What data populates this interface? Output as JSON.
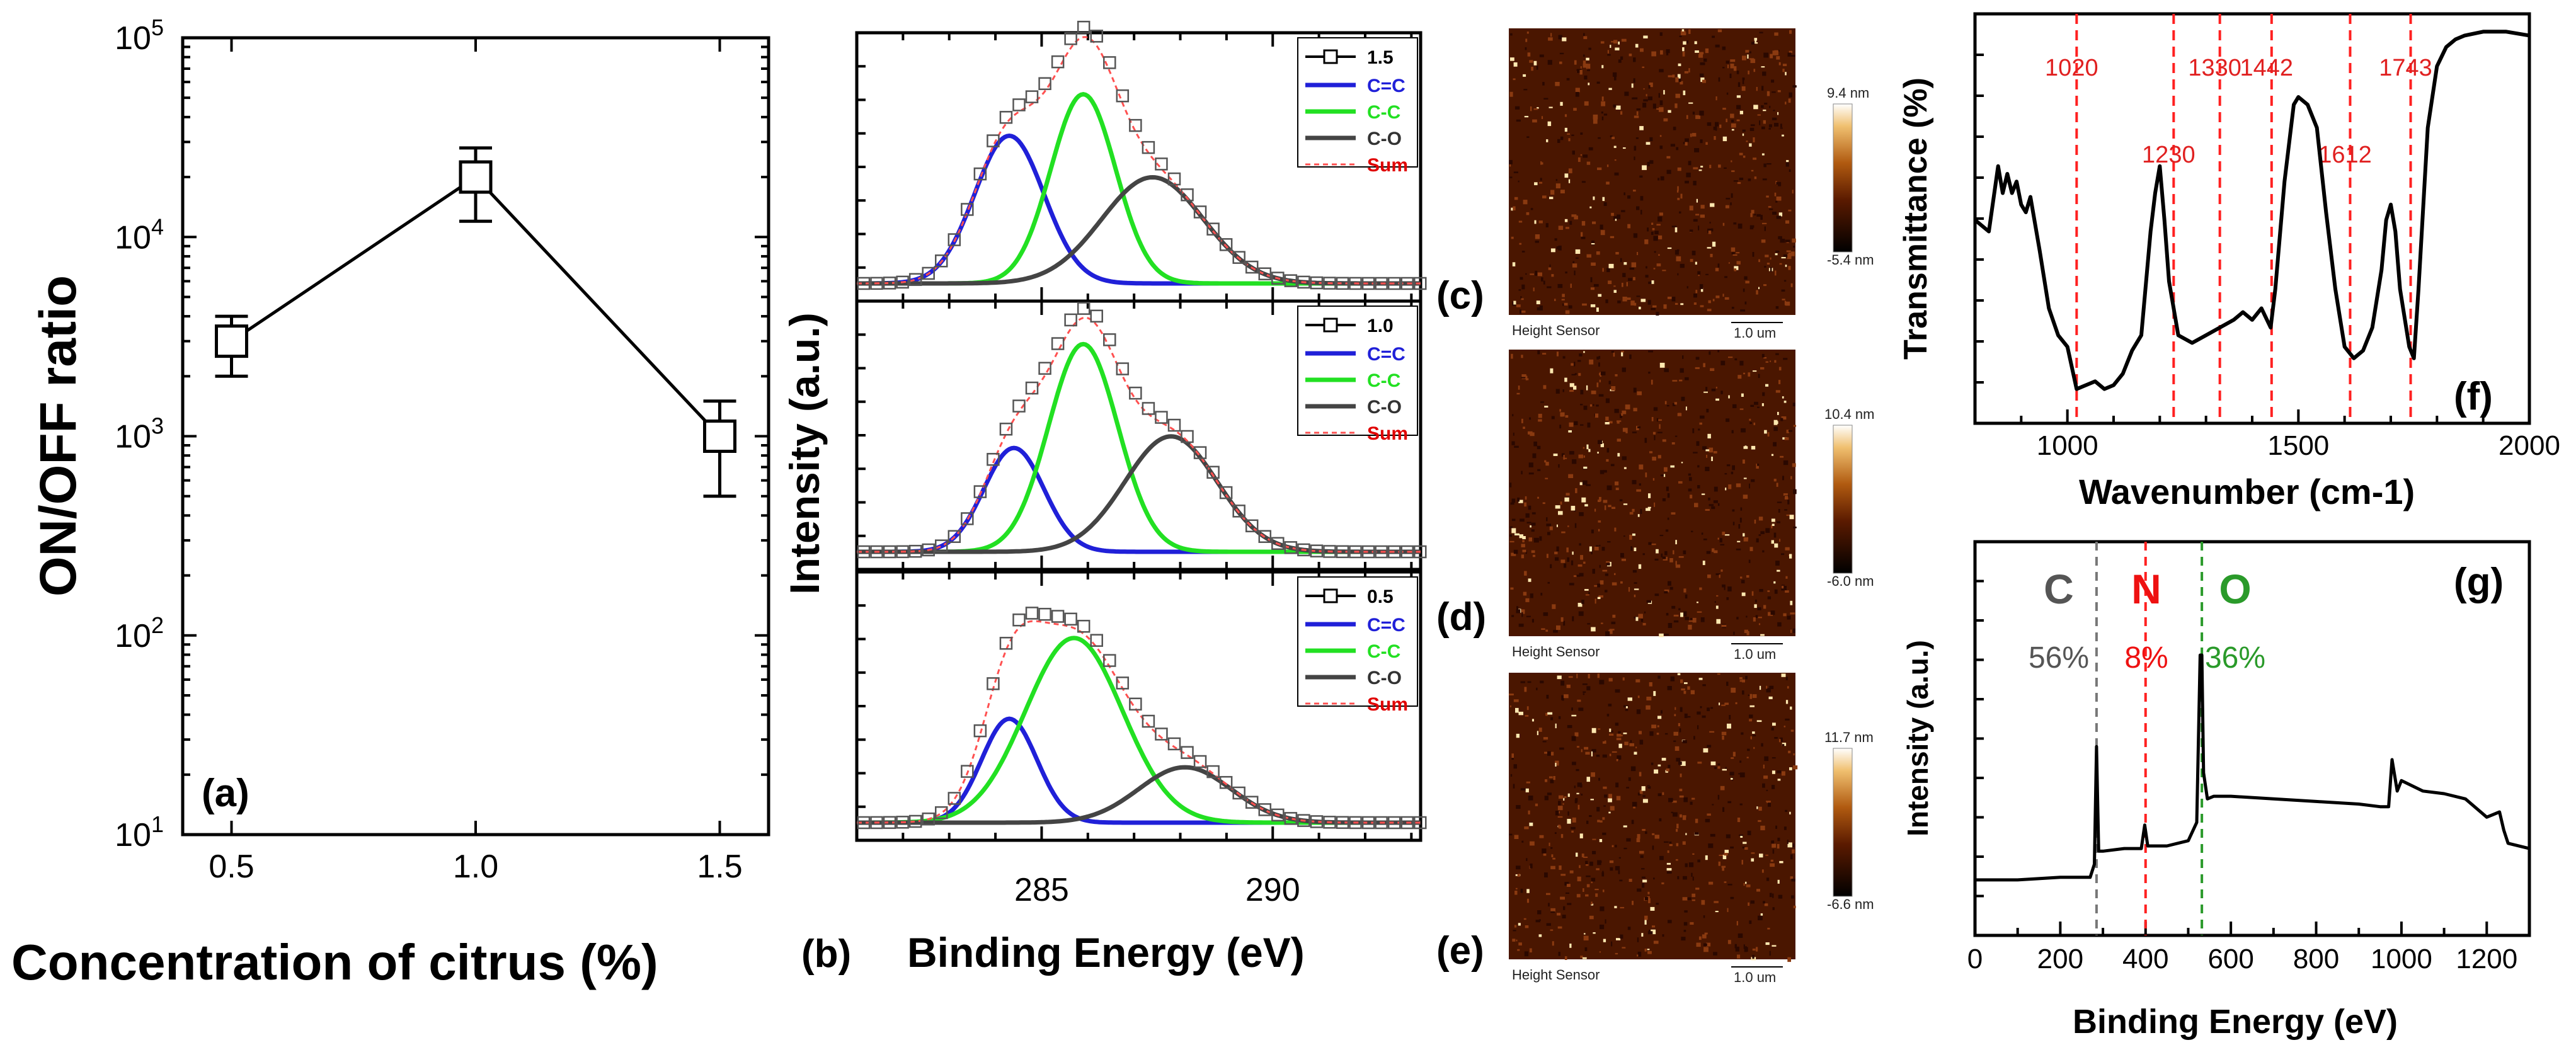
{
  "panel_labels": {
    "a": "(a)",
    "b": "(b)",
    "c": "(c)",
    "d": "(d)",
    "e": "(e)",
    "f": "(f)",
    "g": "(g)"
  },
  "colors": {
    "blue": "#2020d8",
    "green": "#22e022",
    "dark": "#444444",
    "sum": "#ff5050",
    "red_line": "#ff2020",
    "green_line": "#2a9a2a",
    "afm_dark": "#2a0800",
    "afm_mid": "#8a3a10",
    "afm_light": "#ffe8b0"
  },
  "chart_data": [
    {
      "id": "a",
      "type": "line",
      "xlabel": "Concentration of citrus (%)",
      "ylabel": "ON/OFF ratio",
      "yscale": "log",
      "xlim": [
        0.4,
        1.6
      ],
      "ylim": [
        10,
        100000
      ],
      "xticks": [
        "0.5",
        "1.0",
        "1.5"
      ],
      "x": [
        0.5,
        1.0,
        1.5
      ],
      "y": [
        3000,
        20000,
        1000
      ],
      "yerr_low": [
        2000,
        12000,
        500
      ],
      "yerr_high": [
        4000,
        28000,
        1500
      ],
      "marker": "open-square"
    },
    {
      "id": "b",
      "type": "line",
      "xlabel": "Binding Energy (eV)",
      "ylabel": "Intensity (a.u.)",
      "xlim": [
        281,
        293.2
      ],
      "xticks": [
        "285",
        "290"
      ],
      "legend_labels": {
        "cc_double": "C=C",
        "cc_single": "C-C",
        "co": "C-O",
        "sum": "Sum"
      },
      "subpanels": [
        {
          "name": "1.5",
          "peaks": [
            {
              "label": "C=C",
              "center": 284.3,
              "amp": 0.64,
              "sigma": 0.75
            },
            {
              "label": "C-C",
              "center": 285.9,
              "amp": 0.82,
              "sigma": 0.7
            },
            {
              "label": "C-O",
              "center": 287.4,
              "amp": 0.46,
              "sigma": 1.1
            }
          ]
        },
        {
          "name": "1.0",
          "peaks": [
            {
              "label": "C=C",
              "center": 284.4,
              "amp": 0.45,
              "sigma": 0.65
            },
            {
              "label": "C-C",
              "center": 285.9,
              "amp": 0.9,
              "sigma": 0.75
            },
            {
              "label": "C-O",
              "center": 287.8,
              "amp": 0.5,
              "sigma": 1.0
            }
          ]
        },
        {
          "name": "0.5",
          "peaks": [
            {
              "label": "C=C",
              "center": 284.3,
              "amp": 0.45,
              "sigma": 0.6
            },
            {
              "label": "C-C",
              "center": 285.7,
              "amp": 0.8,
              "sigma": 1.05
            },
            {
              "label": "C-O",
              "center": 288.1,
              "amp": 0.24,
              "sigma": 1.0
            }
          ]
        }
      ]
    },
    {
      "id": "f",
      "type": "line",
      "xlabel": "Wavenumber (cm-1)",
      "ylabel": "Transmittance (%)",
      "xlim": [
        800,
        2000
      ],
      "xticks": [
        "1000",
        "1500",
        "2000"
      ],
      "vlines": [
        1020,
        1230,
        1330,
        1442,
        1612,
        1743
      ],
      "vline_labels": [
        "1020",
        "1230",
        "1330",
        "1442",
        "1612",
        "1743"
      ],
      "x": [
        800,
        830,
        850,
        860,
        870,
        880,
        890,
        900,
        910,
        920,
        940,
        960,
        980,
        1000,
        1020,
        1040,
        1060,
        1080,
        1100,
        1120,
        1140,
        1160,
        1180,
        1190,
        1200,
        1210,
        1220,
        1240,
        1270,
        1300,
        1330,
        1360,
        1380,
        1400,
        1420,
        1440,
        1450,
        1470,
        1490,
        1500,
        1520,
        1540,
        1560,
        1580,
        1600,
        1620,
        1640,
        1660,
        1680,
        1690,
        1700,
        1710,
        1720,
        1740,
        1750,
        1760,
        1780,
        1800,
        1820,
        1840,
        1860,
        1900,
        1950,
        2000
      ],
      "y": [
        48,
        45,
        62,
        55,
        60,
        55,
        58,
        52,
        50,
        54,
        40,
        25,
        18,
        15,
        4,
        5,
        6,
        4,
        5,
        8,
        14,
        18,
        45,
        55,
        62,
        48,
        32,
        18,
        16,
        18,
        20,
        22,
        24,
        22,
        25,
        20,
        30,
        58,
        78,
        80,
        78,
        72,
        50,
        30,
        15,
        12,
        14,
        20,
        35,
        48,
        52,
        45,
        30,
        15,
        12,
        30,
        72,
        88,
        93,
        95,
        96,
        97,
        97,
        96
      ]
    },
    {
      "id": "g",
      "type": "line",
      "xlabel": "Binding Energy (eV)",
      "ylabel": "Intensity (a.u.)",
      "xlim": [
        0,
        1300
      ],
      "xticks": [
        "0",
        "200",
        "400",
        "600",
        "800",
        "1000",
        "1200"
      ],
      "vlines": [
        285,
        400,
        532
      ],
      "elements": [
        "C",
        "N",
        "O"
      ],
      "percentages": [
        "56%",
        "8%",
        "36%"
      ],
      "x": [
        0,
        100,
        200,
        270,
        280,
        285,
        290,
        300,
        350,
        390,
        398,
        405,
        450,
        500,
        520,
        528,
        532,
        536,
        545,
        560,
        600,
        700,
        800,
        900,
        950,
        970,
        978,
        990,
        1000,
        1050,
        1100,
        1150,
        1200,
        1230,
        1240,
        1250,
        1300
      ],
      "y": [
        14,
        14,
        15,
        15,
        20,
        65,
        25,
        25,
        26,
        26,
        35,
        27,
        27,
        29,
        36,
        100,
        100,
        55,
        45,
        46,
        46,
        45,
        44,
        43,
        42,
        42,
        60,
        48,
        52,
        48,
        47,
        45,
        38,
        40,
        33,
        28,
        26
      ]
    }
  ],
  "afm_images": [
    {
      "panel": "c",
      "scale_max": "9.4 nm",
      "scale_min": "-5.4 nm",
      "caption": "Height Sensor",
      "scalebar": "1.0 um"
    },
    {
      "panel": "d",
      "scale_max": "10.4 nm",
      "scale_min": "-6.0 nm",
      "caption": "Height Sensor",
      "scalebar": "1.0 um"
    },
    {
      "panel": "e",
      "scale_max": "11.7 nm",
      "scale_min": "-6.6 nm",
      "caption": "Height Sensor",
      "scalebar": "1.0 um"
    }
  ]
}
